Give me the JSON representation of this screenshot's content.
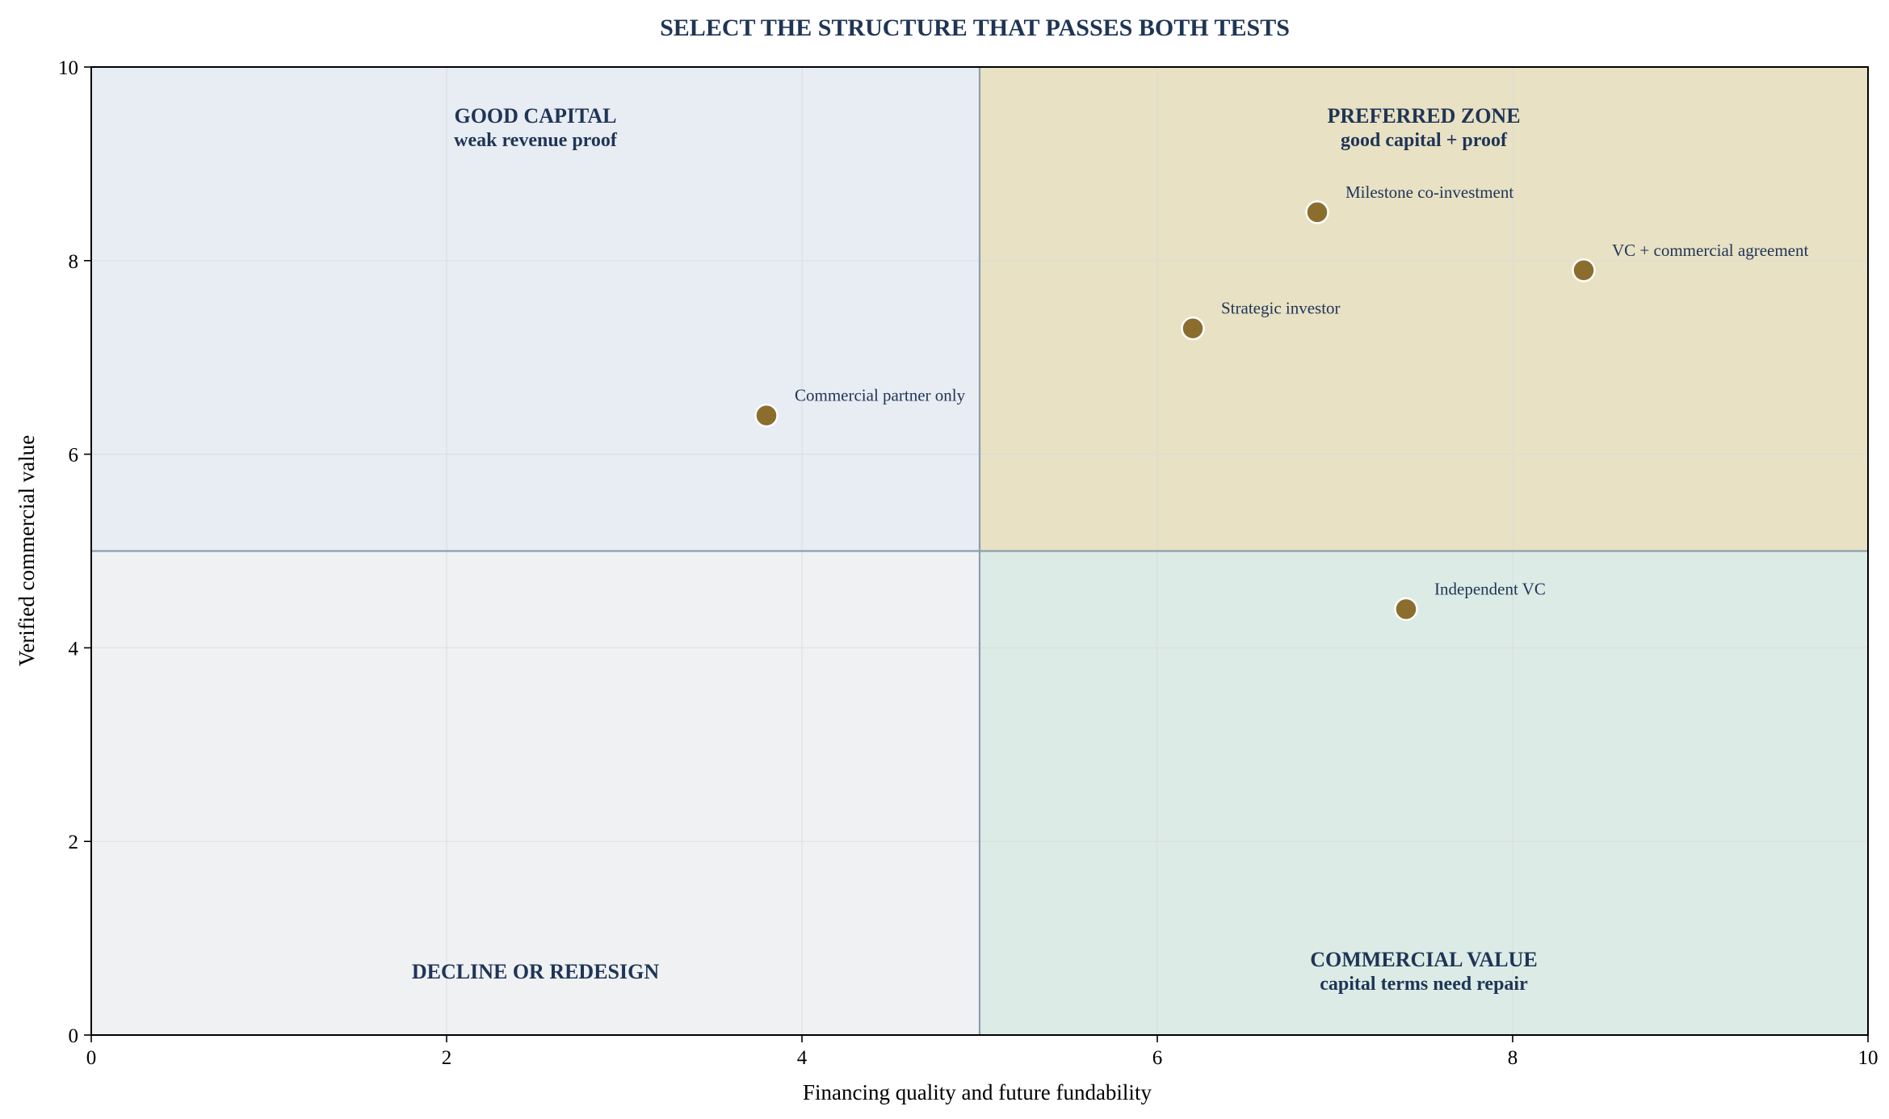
{
  "chart_data": {
    "type": "scatter",
    "title": "SELECT THE STRUCTURE THAT PASSES BOTH TESTS",
    "xlabel": "Financing quality and future fundability",
    "ylabel": "Verified commercial value",
    "xlim": [
      0,
      10
    ],
    "ylim": [
      0,
      10
    ],
    "xticks": [
      "0",
      "2",
      "4",
      "6",
      "8",
      "10"
    ],
    "yticks": [
      "0",
      "2",
      "4",
      "6",
      "8",
      "10"
    ],
    "grid": true,
    "threshold": {
      "x": 5,
      "y": 5
    },
    "quadrants": [
      {
        "id": "good-capital",
        "line1": "GOOD CAPITAL",
        "line2": "weak revenue proof",
        "fill": "#e8ecf3",
        "x": [
          0,
          5
        ],
        "y": [
          5,
          10
        ]
      },
      {
        "id": "preferred-zone",
        "line1": "PREFERRED ZONE",
        "line2": "good capital + proof",
        "fill": "#e8e1c4",
        "x": [
          5,
          10
        ],
        "y": [
          5,
          10
        ]
      },
      {
        "id": "decline-or-redesign",
        "line1": "DECLINE OR REDESIGN",
        "line2": "",
        "fill": "#f0f1f3",
        "x": [
          0,
          5
        ],
        "y": [
          0,
          5
        ]
      },
      {
        "id": "commercial-value",
        "line1": "COMMERCIAL VALUE",
        "line2": "capital terms need repair",
        "fill": "#dcebe5",
        "x": [
          5,
          10
        ],
        "y": [
          0,
          5
        ]
      }
    ],
    "points": [
      {
        "label": "Commercial partner only",
        "x": 3.8,
        "y": 6.4
      },
      {
        "label": "Strategic investor",
        "x": 6.2,
        "y": 7.3
      },
      {
        "label": "Milestone co-investment",
        "x": 6.9,
        "y": 8.5
      },
      {
        "label": "VC + commercial agreement",
        "x": 8.4,
        "y": 7.9
      },
      {
        "label": "Independent VC",
        "x": 7.4,
        "y": 4.4
      }
    ],
    "colors": {
      "point_fill": "#8b6d2e",
      "point_stroke": "#ffffff",
      "title": "#1f3556",
      "divider": "#8a9fb0",
      "grid": "#d8dbe0"
    }
  }
}
